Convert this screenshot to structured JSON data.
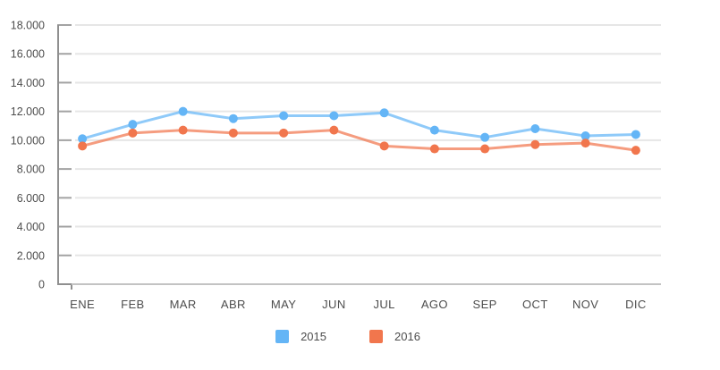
{
  "chart_data": {
    "type": "line",
    "title": "",
    "xlabel": "",
    "ylabel": "",
    "categories": [
      "ENE",
      "FEB",
      "MAR",
      "ABR",
      "MAY",
      "JUN",
      "JUL",
      "AGO",
      "SEP",
      "OCT",
      "NOV",
      "DIC"
    ],
    "series": [
      {
        "name": "2015",
        "color": "#64B5F6",
        "values": [
          10100,
          11100,
          12000,
          11500,
          11700,
          11700,
          11900,
          10700,
          10200,
          10800,
          10300,
          10400
        ]
      },
      {
        "name": "2016",
        "color": "#F1764D",
        "values": [
          9600,
          10500,
          10700,
          10500,
          10500,
          10700,
          9600,
          9400,
          9400,
          9700,
          9800,
          9300
        ]
      }
    ],
    "ylim": [
      0,
      18000
    ],
    "y_ticks": [
      {
        "value": 0,
        "label": "0"
      },
      {
        "value": 2000,
        "label": "2.000"
      },
      {
        "value": 4000,
        "label": "4.000"
      },
      {
        "value": 6000,
        "label": "6.000"
      },
      {
        "value": 8000,
        "label": "8.000"
      },
      {
        "value": 10000,
        "label": "10.000"
      },
      {
        "value": 12000,
        "label": "12.000"
      },
      {
        "value": 14000,
        "label": "14.000"
      },
      {
        "value": 16000,
        "label": "16.000"
      },
      {
        "value": 18000,
        "label": "18.000"
      }
    ],
    "grid": "horizontal",
    "legend_position": "bottom",
    "marker": "circle"
  },
  "colors": {
    "axis": "#8f8f8f",
    "tick": "#a3a3a3",
    "grid": "#e6e6e6",
    "baseline": "#c3c3c3",
    "label_text": "#4d4d4d"
  }
}
